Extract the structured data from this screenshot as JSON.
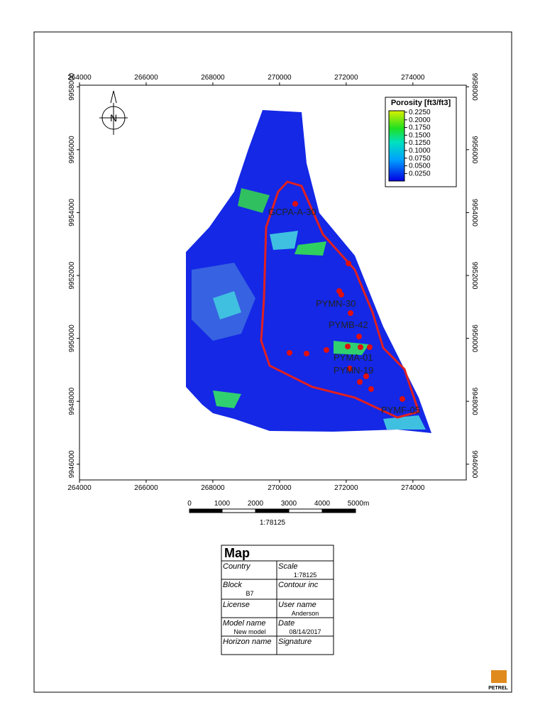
{
  "map": {
    "xlim": [
      264000,
      275600
    ],
    "ylim": [
      9945500,
      9958050
    ],
    "xticks": [
      264000,
      266000,
      268000,
      270000,
      272000,
      274000
    ],
    "yticks": [
      9946000,
      9948000,
      9950000,
      9952000,
      9954000,
      9956000,
      9958000
    ],
    "legend": {
      "title": "Porosity [ft3/ft3]",
      "labels": [
        "0.2250",
        "0.2000",
        "0.1750",
        "0.1500",
        "0.1250",
        "0.1000",
        "0.0750",
        "0.0500",
        "0.0250"
      ]
    },
    "wells": [
      {
        "label": "GCPA-A-30"
      },
      {
        "label": "PYMN-30"
      },
      {
        "label": "PYMB-42"
      },
      {
        "label": "PYMA-01"
      },
      {
        "label": "PYMN-19"
      },
      {
        "label": "PYMF-05"
      }
    ],
    "scale_bar": {
      "labels": [
        "0",
        "1000",
        "2000",
        "3000",
        "4000",
        "5000m"
      ],
      "ratio": "1:78125"
    }
  },
  "info_table": {
    "title": "Map",
    "rows": [
      [
        {
          "label": "Country"
        },
        {
          "label": "Scale",
          "value": "1:78125"
        }
      ],
      [
        {
          "label": "Block",
          "value": "B7"
        },
        {
          "label": "Contour inc"
        }
      ],
      [
        {
          "label": "License"
        },
        {
          "label": "User name",
          "value": "Anderson"
        }
      ],
      [
        {
          "label": "Model name",
          "value": "New model"
        },
        {
          "label": "Date",
          "value": "08/14/2017"
        }
      ],
      [
        {
          "label": "Horizon name"
        },
        {
          "label": "Signature"
        }
      ]
    ]
  },
  "logo": "PETREL"
}
